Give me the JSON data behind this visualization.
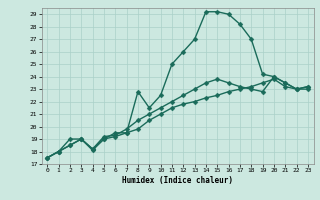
{
  "xlabel": "Humidex (Indice chaleur)",
  "ylabel": "",
  "bg_color": "#cce8e0",
  "line_color": "#1a6b5a",
  "grid_color": "#aad0c8",
  "xlim": [
    -0.5,
    23.5
  ],
  "ylim": [
    17,
    29.5
  ],
  "yticks": [
    17,
    18,
    19,
    20,
    21,
    22,
    23,
    24,
    25,
    26,
    27,
    28,
    29
  ],
  "xticks": [
    0,
    1,
    2,
    3,
    4,
    5,
    6,
    7,
    8,
    9,
    10,
    11,
    12,
    13,
    14,
    15,
    16,
    17,
    18,
    19,
    20,
    21,
    22,
    23
  ],
  "curve1_x": [
    0,
    1,
    2,
    3,
    4,
    5,
    6,
    7,
    8,
    9,
    10,
    11,
    12,
    13,
    14,
    15,
    16,
    17,
    18,
    19,
    20,
    21,
    22,
    23
  ],
  "curve1_y": [
    17.5,
    18.0,
    18.5,
    19.0,
    18.2,
    19.0,
    19.2,
    19.5,
    19.8,
    20.5,
    21.0,
    21.5,
    21.8,
    22.0,
    22.3,
    22.5,
    22.8,
    23.0,
    23.2,
    23.5,
    23.8,
    23.2,
    23.0,
    23.0
  ],
  "curve2_x": [
    0,
    1,
    2,
    3,
    4,
    5,
    6,
    7,
    8,
    9,
    10,
    11,
    12,
    13,
    14,
    15,
    16,
    17,
    18,
    19,
    20,
    21,
    22,
    23
  ],
  "curve2_y": [
    17.5,
    18.0,
    18.5,
    19.0,
    18.2,
    19.2,
    19.3,
    19.8,
    20.5,
    21.0,
    21.5,
    22.0,
    22.5,
    23.0,
    23.5,
    23.8,
    23.5,
    23.2,
    23.0,
    22.8,
    24.0,
    23.5,
    23.0,
    23.2
  ],
  "curve3_x": [
    0,
    1,
    2,
    3,
    4,
    5,
    6,
    7,
    8,
    9,
    10,
    11,
    12,
    13,
    14,
    15,
    16,
    17,
    18,
    19,
    20,
    21,
    22,
    23
  ],
  "curve3_y": [
    17.5,
    18.0,
    19.0,
    19.0,
    18.1,
    19.0,
    19.5,
    19.5,
    22.8,
    21.5,
    22.5,
    25.0,
    26.0,
    27.0,
    29.2,
    29.2,
    29.0,
    28.2,
    27.0,
    24.2,
    24.0,
    23.5,
    23.0,
    23.2
  ],
  "marker_size": 2.5,
  "line_width": 1.0
}
